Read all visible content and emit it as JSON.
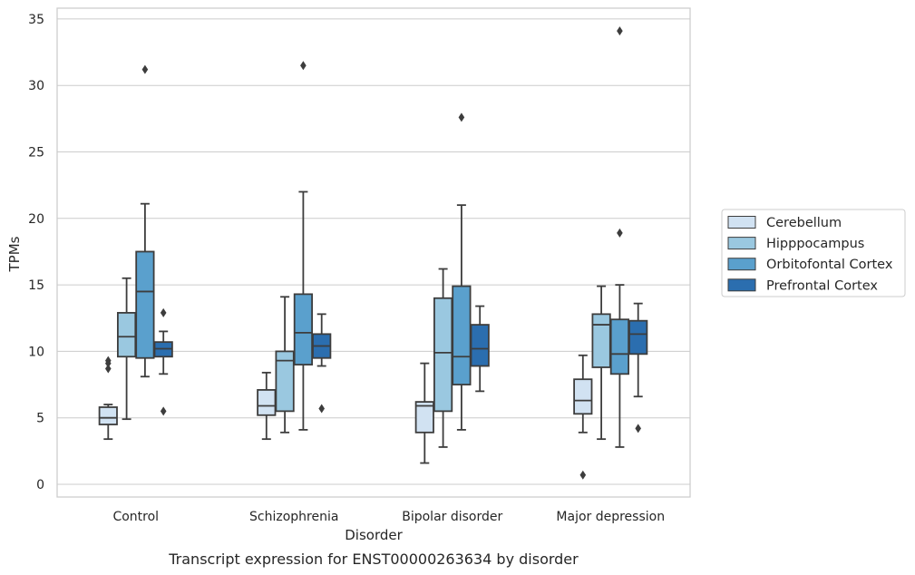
{
  "chart_data": {
    "type": "box",
    "xlabel": "Disorder",
    "ylabel": "TPMs",
    "caption": "Transcript expression for ENST00000263634 by disorder",
    "ylim": [
      -0.9,
      35.8
    ],
    "yticks": [
      0,
      5,
      10,
      15,
      20,
      25,
      30,
      35
    ],
    "grid": true,
    "legend_position": "right",
    "categories": [
      "Control",
      "Schizophrenia",
      "Bipolar disorder",
      "Major depression"
    ],
    "series": [
      {
        "name": "Cerebellum",
        "color": "#d1e2f2",
        "boxes": [
          {
            "whislo": 3.4,
            "q1": 4.5,
            "med": 5.0,
            "q3": 5.8,
            "whishi": 6.0,
            "fliers": [
              9.3,
              9.1,
              8.7
            ]
          },
          {
            "whislo": 3.4,
            "q1": 5.2,
            "med": 5.9,
            "q3": 7.1,
            "whishi": 8.4,
            "fliers": []
          },
          {
            "whislo": 1.6,
            "q1": 3.9,
            "med": 5.9,
            "q3": 6.2,
            "whishi": 9.1,
            "fliers": []
          },
          {
            "whislo": 3.9,
            "q1": 5.3,
            "med": 6.3,
            "q3": 7.9,
            "whishi": 9.7,
            "fliers": [
              0.7
            ]
          }
        ]
      },
      {
        "name": "Hipppocampus",
        "color": "#9ac8e0",
        "boxes": [
          {
            "whislo": 4.9,
            "q1": 9.6,
            "med": 11.1,
            "q3": 12.9,
            "whishi": 15.5,
            "fliers": []
          },
          {
            "whislo": 3.9,
            "q1": 5.5,
            "med": 9.3,
            "q3": 10.0,
            "whishi": 14.1,
            "fliers": []
          },
          {
            "whislo": 2.8,
            "q1": 5.5,
            "med": 9.9,
            "q3": 14.0,
            "whishi": 16.2,
            "fliers": []
          },
          {
            "whislo": 3.4,
            "q1": 8.8,
            "med": 12.0,
            "q3": 12.8,
            "whishi": 14.9,
            "fliers": []
          }
        ]
      },
      {
        "name": "Orbitofontal Cortex",
        "color": "#5aa0cd",
        "boxes": [
          {
            "whislo": 8.1,
            "q1": 9.5,
            "med": 14.5,
            "q3": 17.5,
            "whishi": 21.1,
            "fliers": [
              31.2
            ]
          },
          {
            "whislo": 4.1,
            "q1": 9.0,
            "med": 11.4,
            "q3": 14.3,
            "whishi": 22.0,
            "fliers": [
              31.5
            ]
          },
          {
            "whislo": 4.1,
            "q1": 7.5,
            "med": 9.6,
            "q3": 14.9,
            "whishi": 21.0,
            "fliers": [
              27.6
            ]
          },
          {
            "whislo": 2.8,
            "q1": 8.3,
            "med": 9.8,
            "q3": 12.4,
            "whishi": 15.0,
            "fliers": [
              34.1,
              18.9
            ]
          }
        ]
      },
      {
        "name": "Prefrontal Cortex",
        "color": "#2b6eaf",
        "boxes": [
          {
            "whislo": 8.3,
            "q1": 9.6,
            "med": 10.2,
            "q3": 10.7,
            "whishi": 11.5,
            "fliers": [
              12.9,
              5.5
            ]
          },
          {
            "whislo": 8.9,
            "q1": 9.5,
            "med": 10.4,
            "q3": 11.3,
            "whishi": 12.8,
            "fliers": [
              5.7
            ]
          },
          {
            "whislo": 7.0,
            "q1": 8.9,
            "med": 10.2,
            "q3": 12.0,
            "whishi": 13.4,
            "fliers": []
          },
          {
            "whislo": 6.6,
            "q1": 9.8,
            "med": 11.3,
            "q3": 12.3,
            "whishi": 13.6,
            "fliers": [
              4.2
            ]
          }
        ]
      }
    ]
  }
}
